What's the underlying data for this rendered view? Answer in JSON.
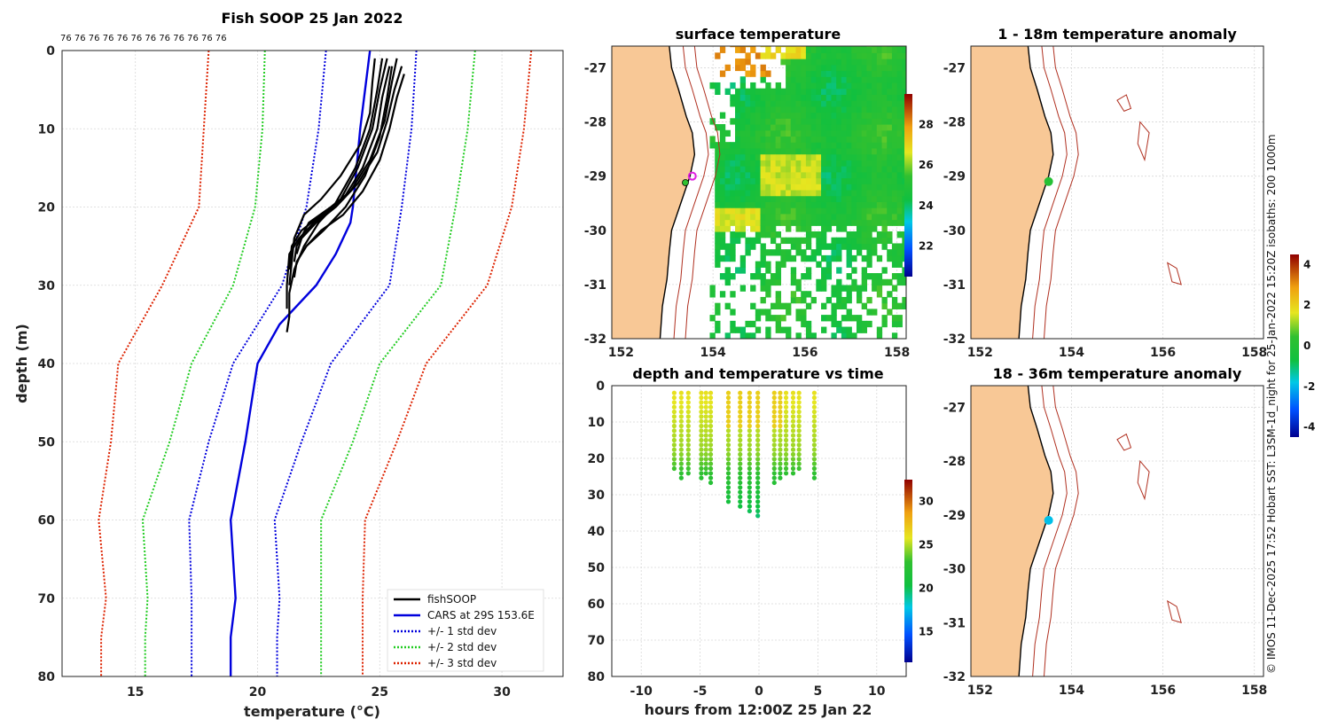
{
  "credit": "© IMOS 11-Dec-2025 17:52 Hobart SST: L3SM-1d_night for 25-Jan-2022 15:20Z isobaths: 200  1000m",
  "colors": {
    "land": "#f8c896",
    "coast": "#000000",
    "isobath": "#b03020",
    "cars": "#0000dd",
    "std1": "#0000dd",
    "std2": "#22cc22",
    "std3": "#dd2200",
    "profile": "#000000"
  },
  "chart_data": [
    {
      "type": "line",
      "id": "profile",
      "title": "Fish SOOP 25 Jan 2022",
      "xlabel": "temperature (°C)",
      "ylabel": "depth (m)",
      "xlim": [
        12,
        32.5
      ],
      "ylim": [
        80,
        0
      ],
      "xticks": [
        15,
        20,
        25,
        30
      ],
      "yticks": [
        0,
        10,
        20,
        30,
        40,
        50,
        60,
        70,
        80
      ],
      "counts_label": "76 76 76 76 76 76 76 76 76 76 76 76",
      "cars_depth": [
        0,
        10,
        20,
        22,
        26,
        30,
        35,
        40,
        50,
        60,
        70,
        75,
        80
      ],
      "cars_temp": [
        24.6,
        24.2,
        23.9,
        23.8,
        23.2,
        22.4,
        20.9,
        20.0,
        19.5,
        18.9,
        19.1,
        18.9,
        18.9
      ],
      "std_depth": [
        0,
        10,
        20,
        30,
        40,
        50,
        60,
        70,
        75,
        80
      ],
      "series": [
        {
          "name": "+/- 1 std dev",
          "lower": [
            22.8,
            22.5,
            22.0,
            21.0,
            19.0,
            18.0,
            17.2,
            17.3,
            17.3,
            17.3
          ],
          "upper": [
            26.5,
            26.3,
            25.9,
            25.4,
            23.0,
            21.8,
            20.7,
            20.9,
            20.8,
            20.8
          ]
        },
        {
          "name": "+/- 2 std dev",
          "lower": [
            20.3,
            20.2,
            19.9,
            19.0,
            17.3,
            16.4,
            15.3,
            15.5,
            15.4,
            15.4
          ],
          "upper": [
            28.9,
            28.6,
            28.1,
            27.5,
            25.0,
            23.9,
            22.6,
            22.6,
            22.6,
            22.6
          ]
        },
        {
          "name": "+/- 3 std dev",
          "lower": [
            18.0,
            17.8,
            17.6,
            16.1,
            14.3,
            14.0,
            13.5,
            13.8,
            13.6,
            13.6
          ],
          "upper": [
            31.2,
            30.9,
            30.4,
            29.4,
            26.9,
            25.7,
            24.4,
            24.3,
            24.3,
            24.3
          ]
        }
      ],
      "legend": [
        "fishSOOP",
        "CARS at 29S 153.6E",
        "+/- 1 std dev",
        "+/- 2 std dev",
        "+/- 3 std dev"
      ],
      "fish_profiles": [
        {
          "depth": [
            1,
            5,
            10,
            15,
            20,
            22,
            24,
            26,
            30,
            33
          ],
          "temp": [
            25.1,
            24.9,
            24.6,
            24.0,
            23.1,
            22.3,
            21.7,
            21.3,
            21.2,
            21.2
          ]
        },
        {
          "depth": [
            2,
            6,
            10,
            15,
            19,
            21,
            23,
            25,
            28
          ],
          "temp": [
            25.4,
            25.1,
            24.9,
            24.3,
            23.5,
            22.6,
            21.8,
            21.4,
            21.3
          ]
        },
        {
          "depth": [
            1,
            4,
            9,
            14,
            18,
            20,
            22,
            25,
            27
          ],
          "temp": [
            25.7,
            25.5,
            25.2,
            24.6,
            23.8,
            23.0,
            22.1,
            21.6,
            21.5
          ]
        },
        {
          "depth": [
            2,
            5,
            9,
            13,
            17,
            20,
            22,
            24,
            26
          ],
          "temp": [
            25.9,
            25.6,
            25.3,
            24.9,
            24.1,
            23.2,
            22.4,
            21.8,
            21.6
          ]
        },
        {
          "depth": [
            1,
            5,
            10,
            15,
            19,
            22,
            25,
            28,
            31,
            34,
            36
          ],
          "temp": [
            25.3,
            25.0,
            24.7,
            24.1,
            23.4,
            22.5,
            21.9,
            21.5,
            21.3,
            21.3,
            21.2
          ]
        },
        {
          "depth": [
            3,
            6,
            10,
            14,
            18,
            21,
            23,
            25
          ],
          "temp": [
            26.0,
            25.7,
            25.4,
            25.0,
            24.3,
            23.5,
            22.6,
            22.0
          ]
        },
        {
          "depth": [
            1,
            4,
            8,
            12,
            16,
            19,
            21,
            24,
            27,
            30
          ],
          "temp": [
            24.8,
            24.7,
            24.6,
            24.2,
            23.4,
            22.6,
            21.9,
            21.5,
            21.4,
            21.3
          ]
        },
        {
          "depth": [
            2,
            6,
            11,
            16,
            20,
            23,
            25,
            27,
            29
          ],
          "temp": [
            25.5,
            25.3,
            25.0,
            24.4,
            23.6,
            22.7,
            22.0,
            21.6,
            21.5
          ]
        }
      ]
    },
    {
      "type": "heatmap",
      "id": "sst",
      "title": "surface temperature",
      "xlim": [
        151.8,
        158.2
      ],
      "ylim": [
        -32,
        -26.6
      ],
      "xticks": [
        152,
        154,
        156,
        158
      ],
      "yticks": [
        -27,
        -28,
        -29,
        -30,
        -31,
        -32
      ],
      "cbar_ticks": [
        22,
        24,
        26,
        28
      ],
      "cbar_range": [
        20.5,
        29.5
      ]
    },
    {
      "type": "scatter",
      "id": "timeseries",
      "title": "depth and temperature vs time",
      "xlabel": "hours from 12:00Z 25 Jan 22",
      "xlim": [
        -12.5,
        12.5
      ],
      "ylim": [
        80,
        0
      ],
      "xticks": [
        -10,
        -5,
        0,
        5,
        10
      ],
      "yticks": [
        0,
        10,
        20,
        30,
        40,
        50,
        60,
        70,
        80
      ],
      "cbar_ticks": [
        15,
        20,
        25,
        30
      ],
      "cbar_range": [
        11.5,
        32.5
      ],
      "casts": [
        {
          "t": -7.2,
          "max": 24
        },
        {
          "t": -6.6,
          "max": 26
        },
        {
          "t": -6.0,
          "max": 25
        },
        {
          "t": -4.9,
          "max": 26
        },
        {
          "t": -4.5,
          "max": 25
        },
        {
          "t": -4.1,
          "max": 27
        },
        {
          "t": -2.6,
          "max": 32
        },
        {
          "t": -1.6,
          "max": 34
        },
        {
          "t": -0.8,
          "max": 35
        },
        {
          "t": -0.1,
          "max": 36
        },
        {
          "t": 1.3,
          "max": 27
        },
        {
          "t": 1.8,
          "max": 26
        },
        {
          "t": 2.3,
          "max": 25
        },
        {
          "t": 2.9,
          "max": 25
        },
        {
          "t": 3.4,
          "max": 24
        },
        {
          "t": 4.7,
          "max": 26
        }
      ]
    },
    {
      "type": "heatmap",
      "id": "anom1",
      "title": "1 - 18m temperature anomaly",
      "xlim": [
        151.8,
        158.2
      ],
      "ylim": [
        -32,
        -26.6
      ],
      "xticks": [
        152,
        154,
        156,
        158
      ],
      "yticks": [
        -27,
        -28,
        -29,
        -30,
        -31,
        -32
      ],
      "cbar_ticks": [
        -4,
        -2,
        0,
        2,
        4
      ],
      "cbar_range": [
        -4.5,
        4.5
      ],
      "point": {
        "lon": 153.5,
        "lat": -29.1,
        "anomaly": 0.1
      }
    },
    {
      "type": "heatmap",
      "id": "anom2",
      "title": "18 - 36m temperature anomaly",
      "xlim": [
        151.8,
        158.2
      ],
      "ylim": [
        -32,
        -26.6
      ],
      "xticks": [
        152,
        154,
        156,
        158
      ],
      "yticks": [
        -27,
        -28,
        -29,
        -30,
        -31,
        -32
      ],
      "point": {
        "lon": 153.5,
        "lat": -29.1,
        "anomaly": -1.9
      }
    }
  ]
}
